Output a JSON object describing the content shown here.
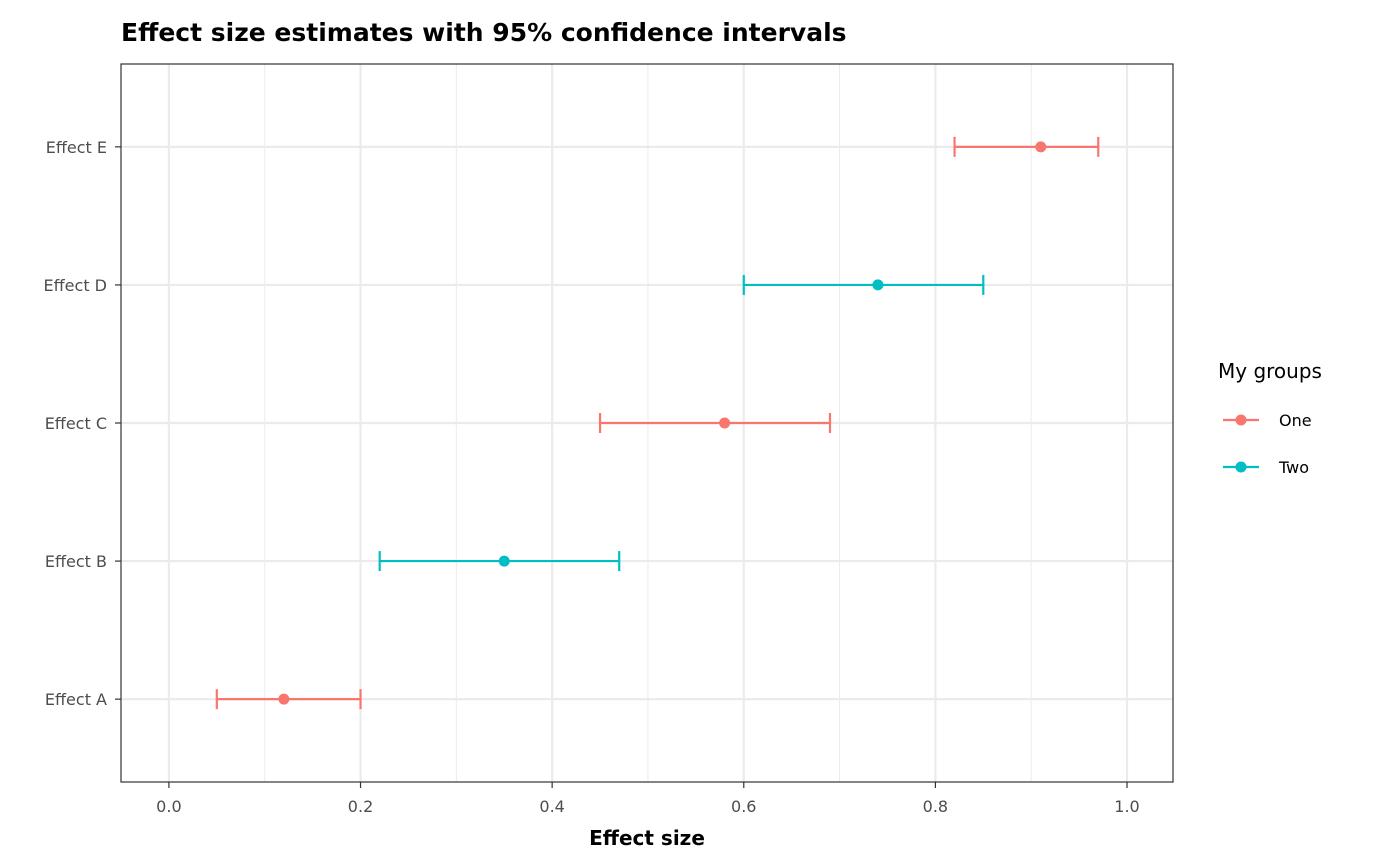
{
  "chart_data": {
    "type": "scatter",
    "subtype": "point-range with horizontal error bars",
    "title": "Effect size estimates with 95% confidence intervals",
    "xlabel": "Effect size",
    "ylabel": "",
    "xlim": [
      -0.05,
      1.048
    ],
    "x_ticks": [
      0.0,
      0.2,
      0.4,
      0.6,
      0.8,
      1.0
    ],
    "x_tick_labels": [
      "0.0",
      "0.2",
      "0.4",
      "0.6",
      "0.8",
      "1.0"
    ],
    "categories": [
      "Effect A",
      "Effect B",
      "Effect C",
      "Effect D",
      "Effect E"
    ],
    "grid": true,
    "legend": {
      "title": "My groups",
      "placement": "right",
      "entries": [
        {
          "label": "One",
          "color": "#F8766D"
        },
        {
          "label": "Two",
          "color": "#00BFC4"
        }
      ]
    },
    "points": [
      {
        "category": "Effect A",
        "group": "One",
        "estimate": 0.12,
        "lower": 0.05,
        "upper": 0.2
      },
      {
        "category": "Effect B",
        "group": "Two",
        "estimate": 0.35,
        "lower": 0.22,
        "upper": 0.47
      },
      {
        "category": "Effect C",
        "group": "One",
        "estimate": 0.58,
        "lower": 0.45,
        "upper": 0.69
      },
      {
        "category": "Effect D",
        "group": "Two",
        "estimate": 0.74,
        "lower": 0.6,
        "upper": 0.85
      },
      {
        "category": "Effect E",
        "group": "One",
        "estimate": 0.91,
        "lower": 0.82,
        "upper": 0.97
      }
    ]
  }
}
